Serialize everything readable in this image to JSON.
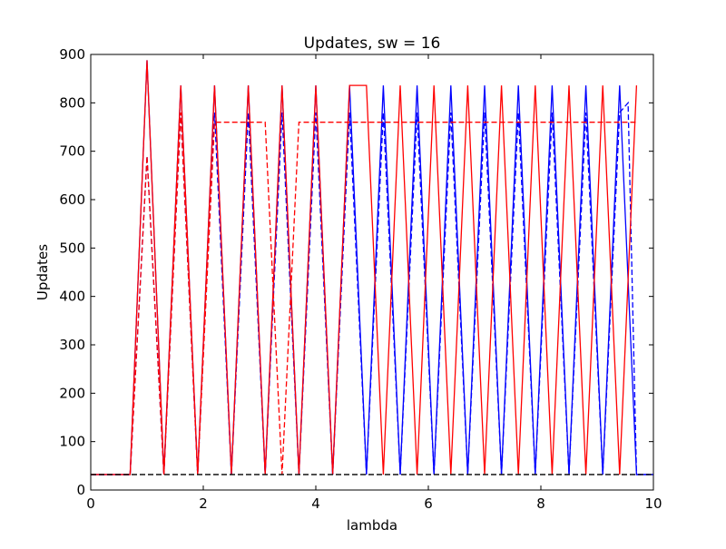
{
  "chart_data": {
    "type": "line",
    "title": "Updates, sw = 16",
    "xlabel": "lambda",
    "ylabel": "Updates",
    "xlim": [
      0,
      10
    ],
    "ylim": [
      0,
      900
    ],
    "xticks": [
      0,
      2,
      4,
      6,
      8,
      10
    ],
    "yticks": [
      0,
      100,
      200,
      300,
      400,
      500,
      600,
      700,
      800,
      900
    ],
    "grid": false,
    "legend": "none",
    "series": [
      {
        "color": "#0000ff",
        "style": "solid",
        "x": [
          0,
          0.7,
          1.0,
          1.3,
          1.6,
          1.9,
          2.2,
          2.5,
          2.8,
          3.1,
          3.4,
          3.7,
          4.0,
          4.3,
          4.6,
          4.9,
          5.2,
          5.5,
          5.8,
          6.1,
          6.4,
          6.7,
          7.0,
          7.3,
          7.6,
          7.9,
          8.2,
          8.5,
          8.8,
          9.1,
          9.4,
          9.7,
          10.0
        ],
        "y": [
          32,
          32,
          888,
          32,
          836,
          32,
          836,
          32,
          836,
          32,
          836,
          32,
          836,
          32,
          836,
          32,
          836,
          32,
          836,
          32,
          836,
          32,
          836,
          32,
          836,
          32,
          836,
          32,
          836,
          32,
          836,
          32,
          32
        ]
      },
      {
        "color": "#0000ff",
        "style": "dashed",
        "x": [
          0,
          0.7,
          1.0,
          1.3,
          1.6,
          1.9,
          2.2,
          2.5,
          2.8,
          3.1,
          3.4,
          3.7,
          4.0,
          4.3,
          4.6,
          4.9,
          5.2,
          5.5,
          5.8,
          6.1,
          6.4,
          6.7,
          7.0,
          7.3,
          7.6,
          7.9,
          8.2,
          8.5,
          8.8,
          9.1,
          9.4,
          9.55,
          9.7,
          10.0
        ],
        "y": [
          32,
          32,
          690,
          32,
          780,
          32,
          780,
          32,
          780,
          32,
          780,
          32,
          780,
          32,
          780,
          32,
          780,
          32,
          780,
          32,
          780,
          32,
          780,
          32,
          780,
          32,
          780,
          32,
          780,
          32,
          780,
          800,
          32,
          32
        ]
      },
      {
        "color": "#ff0000",
        "style": "solid",
        "x": [
          0,
          0.7,
          1.0,
          1.3,
          1.6,
          1.9,
          2.2,
          2.5,
          2.8,
          3.1,
          3.4,
          3.7,
          4.0,
          4.3,
          4.6,
          4.9,
          5.2,
          5.5,
          5.8,
          6.1,
          6.4,
          6.7,
          7.0,
          7.3,
          7.6,
          7.9,
          8.2,
          8.5,
          8.8,
          9.1,
          9.4,
          9.7
        ],
        "y": [
          32,
          32,
          888,
          32,
          836,
          32,
          836,
          32,
          836,
          32,
          836,
          32,
          836,
          32,
          836,
          836,
          32,
          836,
          32,
          836,
          32,
          836,
          32,
          836,
          32,
          836,
          32,
          836,
          32,
          836,
          32,
          836
        ]
      },
      {
        "color": "#ff0000",
        "style": "dashed",
        "x": [
          0,
          0.7,
          1.0,
          1.3,
          1.6,
          1.9,
          2.2,
          2.5,
          2.8,
          3.1,
          3.4,
          3.7,
          4.0,
          4.3,
          4.6,
          4.9,
          5.2,
          5.5,
          5.8,
          6.1,
          6.4,
          6.7,
          7.0,
          7.3,
          7.6,
          7.9,
          8.2,
          8.5,
          8.8,
          9.1,
          9.4,
          9.7
        ],
        "y": [
          32,
          32,
          690,
          32,
          780,
          32,
          760,
          760,
          760,
          760,
          32,
          760,
          760,
          760,
          760,
          760,
          760,
          760,
          760,
          760,
          760,
          760,
          760,
          760,
          760,
          760,
          760,
          760,
          760,
          760,
          760,
          760
        ]
      },
      {
        "color": "#000000",
        "style": "dashed",
        "x": [
          0,
          10
        ],
        "y": [
          32,
          32
        ]
      }
    ]
  }
}
